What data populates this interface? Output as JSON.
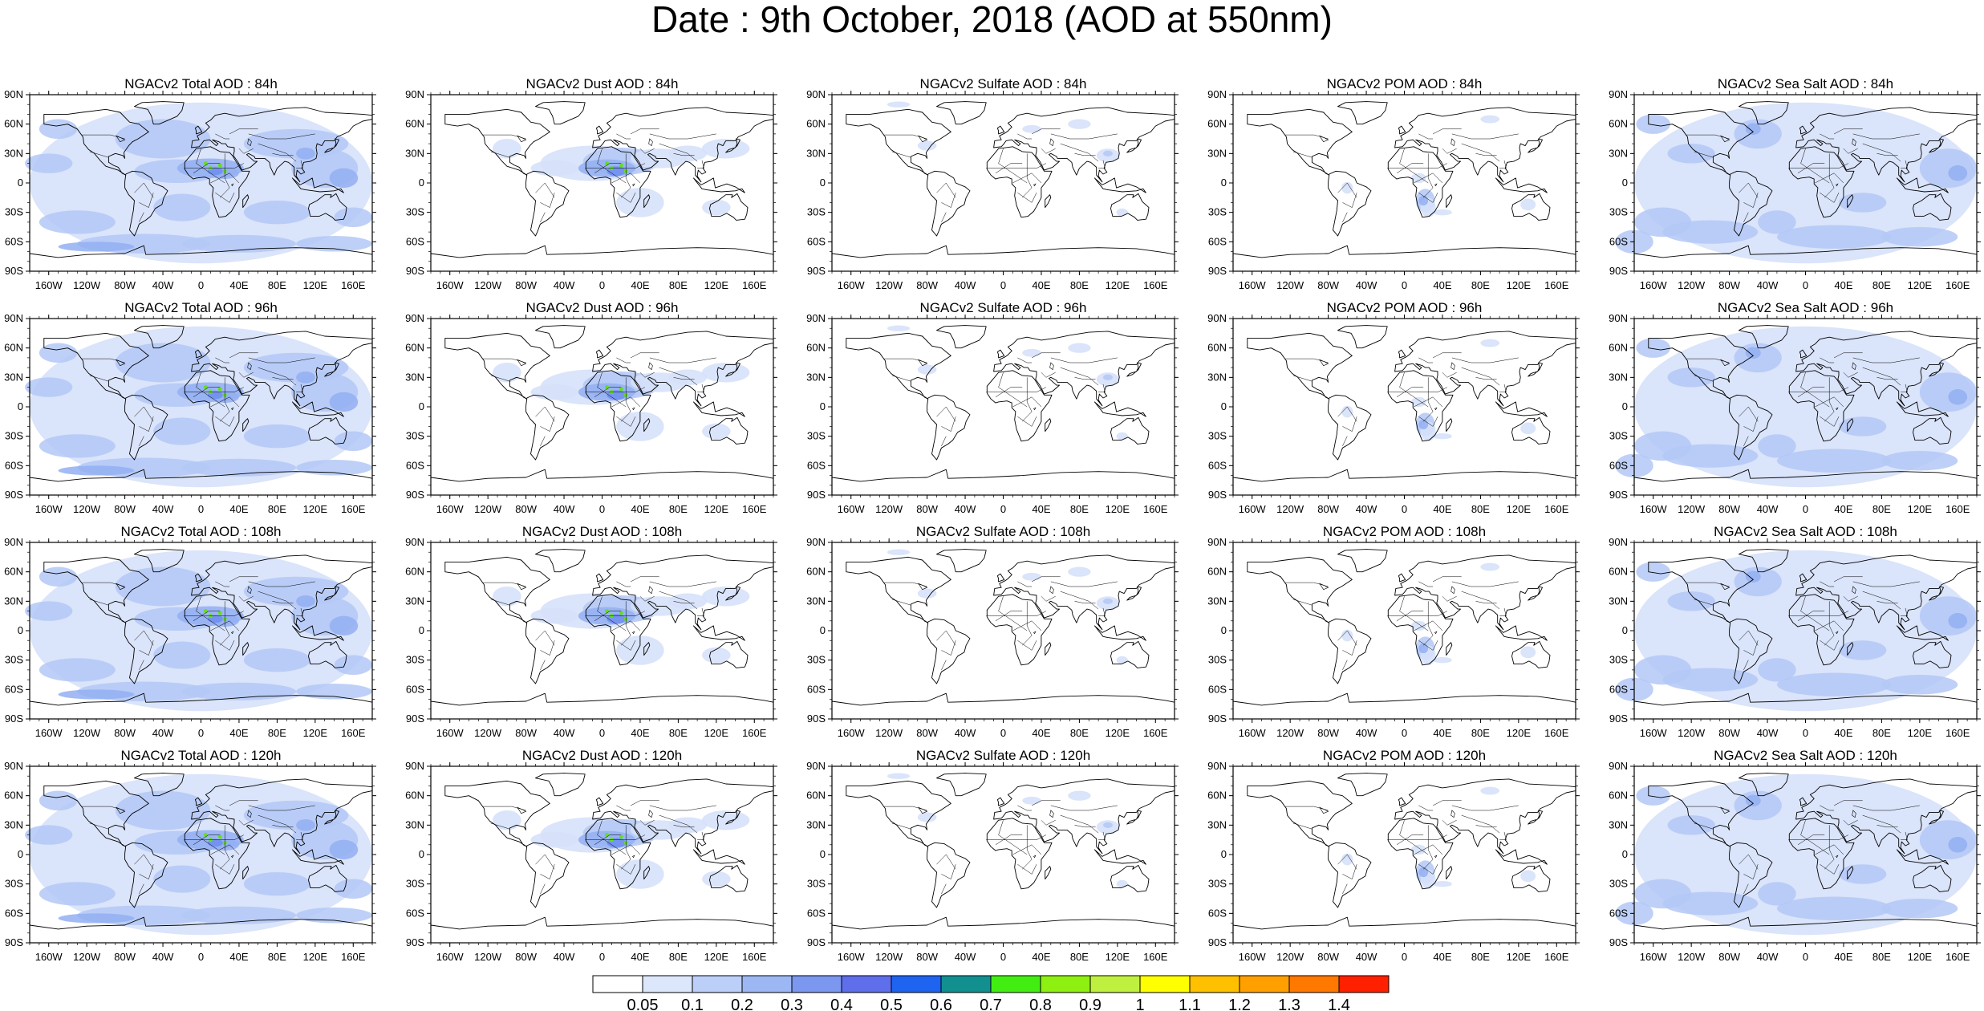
{
  "title": "Date : 9th October, 2018 (AOD at 550nm)",
  "lat_labels": [
    "90N",
    "60N",
    "30N",
    "0",
    "30S",
    "60S",
    "90S"
  ],
  "lon_labels": [
    "160W",
    "120W",
    "80W",
    "40W",
    "0",
    "40E",
    "80E",
    "120E",
    "160E"
  ],
  "panel_titles": [
    [
      "NGACv2 Total AOD : 84h",
      "NGACv2 Dust AOD : 84h",
      "NGACv2 Sulfate AOD : 84h",
      "NGACv2 POM AOD : 84h",
      "NGACv2 Sea Salt AOD : 84h"
    ],
    [
      "NGACv2 Total AOD : 96h",
      "NGACv2 Dust AOD : 96h",
      "NGACv2 Sulfate AOD : 96h",
      "NGACv2 POM AOD : 96h",
      "NGACv2 Sea Salt AOD : 96h"
    ],
    [
      "NGACv2 Total AOD : 108h",
      "NGACv2 Dust AOD : 108h",
      "NGACv2 Sulfate AOD : 108h",
      "NGACv2 POM AOD : 108h",
      "NGACv2 Sea Salt AOD : 108h"
    ],
    [
      "NGACv2 Total AOD : 120h",
      "NGACv2 Dust AOD : 120h",
      "NGACv2 Sulfate AOD : 120h",
      "NGACv2 POM AOD : 120h",
      "NGACv2 Sea Salt  AOD : 120h"
    ]
  ],
  "colorbar": {
    "labels": [
      "0.05",
      "0.1",
      "0.2",
      "0.3",
      "0.4",
      "0.5",
      "0.6",
      "0.7",
      "0.8",
      "0.9",
      "1",
      "1.1",
      "1.2",
      "1.3",
      "1.4"
    ],
    "colors": [
      "#ffffff",
      "#dde7fb",
      "#bccff8",
      "#9cb7f4",
      "#7b97ef",
      "#5f6eea",
      "#1f64f0",
      "#129090",
      "#42ee12",
      "#8ef010",
      "#bff040",
      "#ffff00",
      "#ffc000",
      "#ffa000",
      "#ff7800",
      "#ff2000"
    ]
  },
  "maps": {
    "total": {
      "colors": [
        "#d6e1fa",
        "#b3c8f6",
        "#93aff2",
        "#6f8eee"
      ],
      "spots": "#66dd22"
    },
    "dust": {
      "colors": [
        "#d6e1fa",
        "#b3c8f6",
        "#93aff2",
        "#6f8eee"
      ],
      "spots": "#66dd22"
    },
    "sulfate": {
      "colors": [
        "#d6e1fa",
        "#b3c8f6"
      ]
    },
    "pom": {
      "colors": [
        "#d6e1fa",
        "#b3c8f6",
        "#93aff2"
      ]
    },
    "seasalt": {
      "colors": [
        "#d6e1fa",
        "#b3c8f6",
        "#93aff2",
        "#6f8eee"
      ]
    }
  }
}
